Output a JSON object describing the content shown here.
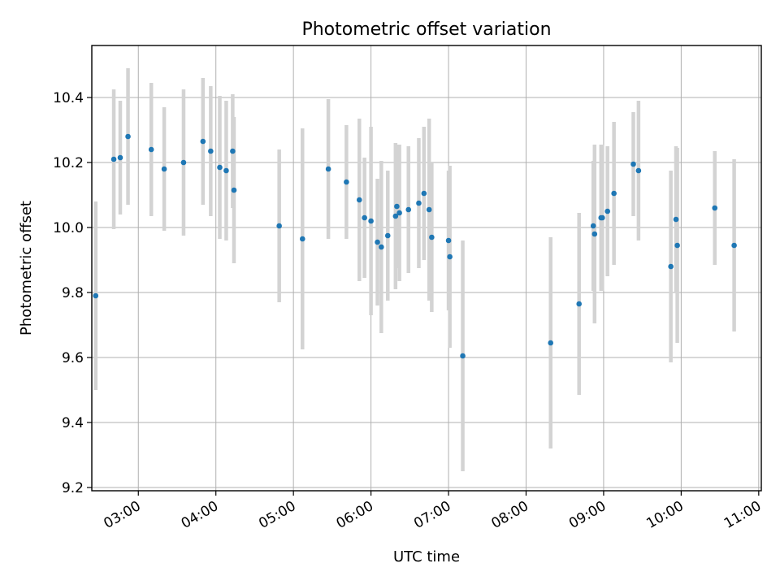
{
  "chart_data": {
    "type": "scatter",
    "title": "Photometric offset variation",
    "xlabel": "UTC time",
    "ylabel": "Photometric offset",
    "x_ticks": [
      "03:00",
      "04:00",
      "05:00",
      "06:00",
      "07:00",
      "08:00",
      "09:00",
      "10:00",
      "11:00"
    ],
    "y_ticks": [
      "9.2",
      "9.4",
      "9.6",
      "9.8",
      "10.0",
      "10.2",
      "10.4"
    ],
    "xlim": [
      "02:24",
      "11:02"
    ],
    "ylim": [
      9.19,
      10.56
    ],
    "grid": true,
    "marker_color": "#1f77b4",
    "errorbar_color": "#d3d3d3",
    "series": [
      {
        "x": [
          "02:27",
          "02:41",
          "02:46",
          "02:52",
          "03:10",
          "03:20",
          "03:35",
          "03:50",
          "03:56",
          "04:03",
          "04:08",
          "04:13",
          "04:14",
          "04:49",
          "05:07",
          "05:27",
          "05:41",
          "05:51",
          "05:55",
          "06:00",
          "06:05",
          "06:08",
          "06:13",
          "06:19",
          "06:20",
          "06:22",
          "06:29",
          "06:37",
          "06:41",
          "06:45",
          "06:47",
          "07:00",
          "07:01",
          "07:11",
          "08:19",
          "08:41",
          "08:52",
          "08:53",
          "08:58",
          "08:59",
          "09:03",
          "09:08",
          "09:23",
          "09:27",
          "09:52",
          "09:56",
          "09:57",
          "10:26",
          "10:41"
        ],
        "y": [
          9.79,
          10.21,
          10.215,
          10.28,
          10.24,
          10.18,
          10.2,
          10.265,
          10.235,
          10.185,
          10.175,
          10.235,
          10.115,
          10.005,
          9.965,
          10.18,
          10.14,
          10.085,
          10.03,
          10.02,
          9.955,
          9.94,
          9.975,
          10.035,
          10.065,
          10.045,
          10.055,
          10.075,
          10.105,
          10.055,
          9.97,
          9.96,
          9.91,
          9.605,
          9.645,
          9.765,
          10.005,
          9.98,
          10.03,
          10.03,
          10.05,
          10.105,
          10.195,
          10.175,
          9.88,
          10.025,
          9.945,
          10.06,
          9.945
        ],
        "yerr": [
          0.29,
          0.215,
          0.175,
          0.21,
          0.205,
          0.19,
          0.225,
          0.195,
          0.2,
          0.22,
          0.215,
          0.175,
          0.225,
          0.235,
          0.34,
          0.215,
          0.175,
          0.25,
          0.185,
          0.29,
          0.195,
          0.265,
          0.2,
          0.225,
          0.19,
          0.21,
          0.195,
          0.2,
          0.205,
          0.28,
          0.23,
          0.215,
          0.28,
          0.355,
          0.325,
          0.28,
          0.2,
          0.275,
          0.225,
          0.225,
          0.2,
          0.22,
          0.16,
          0.215,
          0.295,
          0.225,
          0.3,
          0.175,
          0.265
        ]
      }
    ]
  }
}
